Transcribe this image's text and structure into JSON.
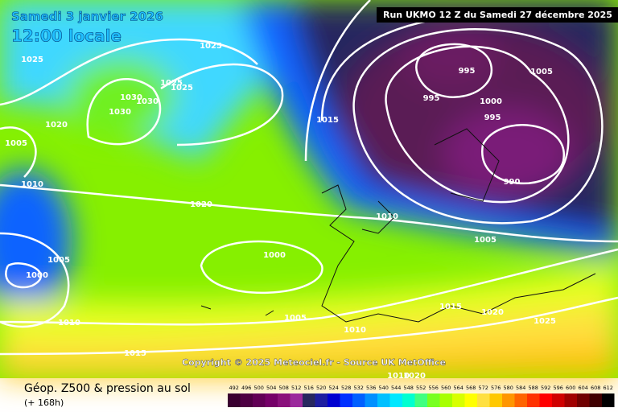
{
  "header": {
    "date": "Samedi 3 janvier 2026",
    "time": "12:00 locale",
    "run": "Run UKMO 12 Z du Samedi 27 décembre 2025"
  },
  "copyright": "Copyright © 2025 Meteociel.fr - Source UK MetOffice",
  "footer": {
    "title": "Géop. Z500 & pression au sol",
    "lead": "(+ 168h)"
  },
  "isobar_labels": [
    1025,
    1025,
    1025,
    1025,
    1030,
    1030,
    1030,
    1020,
    1020,
    1005,
    1005,
    1005,
    1005,
    1005,
    1010,
    1010,
    1010,
    1010,
    1000,
    1000,
    1000,
    995,
    995,
    995,
    990,
    1015,
    1015,
    1015,
    1020,
    1025,
    1010,
    1020
  ],
  "colorbar": {
    "ticks": [
      492,
      496,
      500,
      504,
      508,
      512,
      516,
      520,
      524,
      528,
      532,
      536,
      540,
      544,
      548,
      552,
      556,
      560,
      564,
      568,
      572,
      576,
      580,
      584,
      588,
      592,
      596,
      600,
      604,
      608,
      612
    ],
    "colors": [
      "#3a0030",
      "#4e0042",
      "#620055",
      "#760068",
      "#8a107a",
      "#9c2a9c",
      "#28285e",
      "#1e1ea0",
      "#0000d0",
      "#0030ff",
      "#0060ff",
      "#0090ff",
      "#00c0ff",
      "#00e8ff",
      "#00ffd0",
      "#40ff80",
      "#78ff20",
      "#a8ff00",
      "#d8ff00",
      "#ffff00",
      "#ffe040",
      "#ffc800",
      "#ff9600",
      "#ff6400",
      "#ff3200",
      "#ff0000",
      "#d00000",
      "#a00000",
      "#700000",
      "#400000",
      "#000000"
    ]
  }
}
